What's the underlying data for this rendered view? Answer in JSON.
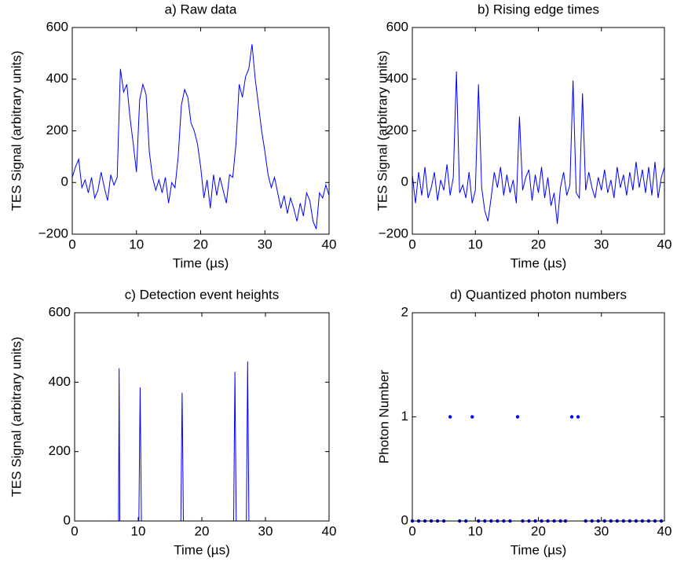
{
  "chart_data": [
    {
      "type": "line",
      "title": "a) Raw data",
      "xlabel": "Time (µs)",
      "ylabel": "TES Signal (arbitrary units)",
      "color": "#0000ff",
      "x": [
        0,
        0.5,
        1,
        1.5,
        2,
        2.5,
        3,
        3.5,
        4,
        4.5,
        5,
        5.5,
        6,
        6.5,
        7,
        7.5,
        8,
        8.5,
        9,
        9.5,
        10,
        10.5,
        11,
        11.5,
        12,
        12.5,
        13,
        13.5,
        14,
        14.5,
        15,
        15.5,
        16,
        16.5,
        17,
        17.5,
        18,
        18.5,
        19,
        19.5,
        20,
        20.5,
        21,
        21.5,
        22,
        22.5,
        23,
        23.5,
        24,
        24.5,
        25,
        25.5,
        26,
        26.5,
        27,
        27.5,
        28,
        28.5,
        29,
        29.5,
        30,
        30.5,
        31,
        31.5,
        32,
        32.5,
        33,
        33.5,
        34,
        34.5,
        35,
        35.5,
        36,
        36.5,
        37,
        37.5,
        38,
        38.5,
        39,
        39.5,
        40
      ],
      "values": [
        20,
        60,
        90,
        -20,
        10,
        -40,
        20,
        -60,
        -30,
        40,
        -20,
        -70,
        30,
        -10,
        20,
        440,
        350,
        380,
        250,
        150,
        40,
        320,
        380,
        340,
        120,
        20,
        -30,
        10,
        -40,
        20,
        -80,
        0,
        -20,
        100,
        300,
        360,
        330,
        230,
        200,
        150,
        60,
        -60,
        10,
        -100,
        30,
        -50,
        20,
        -30,
        -80,
        30,
        20,
        150,
        380,
        330,
        410,
        440,
        535,
        400,
        300,
        200,
        120,
        30,
        -20,
        20,
        -40,
        -100,
        -50,
        -120,
        -60,
        -100,
        -150,
        -80,
        -130,
        -40,
        -70,
        -150,
        -180,
        -40,
        -60,
        -10,
        -50
      ],
      "xlim": [
        0,
        40
      ],
      "xticks": [
        0,
        10,
        20,
        30,
        40
      ],
      "ylim": [
        -200,
        600
      ],
      "yticks": [
        {
          "value": -200,
          "label": "−200"
        },
        0,
        200,
        400,
        600
      ]
    },
    {
      "type": "line",
      "title": "b) Rising edge times",
      "xlabel": "Time (µs)",
      "ylabel": "TES Signal (arbitrary units)",
      "color": "#0000ff",
      "x": [
        0,
        0.5,
        1,
        1.5,
        2,
        2.5,
        3,
        3.5,
        4,
        4.5,
        5,
        5.5,
        6,
        6.5,
        7,
        7.5,
        8,
        8.5,
        9,
        9.5,
        10,
        10.5,
        11,
        11.5,
        12,
        12.5,
        13,
        13.5,
        14,
        14.5,
        15,
        15.5,
        16,
        16.5,
        17,
        17.5,
        18,
        18.5,
        19,
        19.5,
        20,
        20.5,
        21,
        21.5,
        22,
        22.5,
        23,
        23.5,
        24,
        24.5,
        25,
        25.5,
        26,
        26.5,
        27,
        27.5,
        28,
        28.5,
        29,
        29.5,
        30,
        30.5,
        31,
        31.5,
        32,
        32.5,
        33,
        33.5,
        34,
        34.5,
        35,
        35.5,
        36,
        36.5,
        37,
        37.5,
        38,
        38.5,
        39,
        39.5,
        40
      ],
      "values": [
        30,
        -80,
        40,
        -50,
        60,
        -60,
        -20,
        40,
        -70,
        10,
        -30,
        70,
        -50,
        20,
        430,
        -40,
        -10,
        -60,
        40,
        -80,
        -30,
        380,
        -20,
        -110,
        -150,
        -60,
        40,
        -20,
        60,
        -50,
        30,
        -40,
        10,
        -80,
        255,
        -30,
        20,
        50,
        -70,
        30,
        -40,
        60,
        -60,
        20,
        -90,
        -40,
        -160,
        -20,
        40,
        -50,
        -10,
        395,
        -40,
        -60,
        345,
        -30,
        40,
        -20,
        -60,
        20,
        -30,
        50,
        -40,
        10,
        -60,
        60,
        -20,
        30,
        -50,
        40,
        -30,
        80,
        -20,
        50,
        -40,
        60,
        -50,
        80,
        -60,
        20,
        60
      ],
      "xlim": [
        0,
        40
      ],
      "xticks": [
        0,
        10,
        20,
        30,
        40
      ],
      "ylim": [
        -200,
        600
      ],
      "yticks": [
        {
          "value": -200,
          "label": "−200"
        },
        0,
        200,
        400,
        600
      ]
    },
    {
      "type": "line",
      "title": "c) Detection event heights",
      "xlabel": "Time (µs)",
      "ylabel": "TES Signal (arbitrary units)",
      "color": "#0000ff",
      "x": [
        0,
        6.9,
        7,
        7.1,
        10.1,
        10.3,
        10.5,
        16.7,
        16.9,
        17.1,
        25,
        25.2,
        25.4,
        27,
        27.2,
        27.4,
        40
      ],
      "values": [
        0,
        0,
        440,
        0,
        0,
        385,
        0,
        0,
        370,
        0,
        0,
        430,
        0,
        0,
        460,
        0,
        0
      ],
      "xlim": [
        0,
        40
      ],
      "xticks": [
        0,
        10,
        20,
        30,
        40
      ],
      "ylim": [
        0,
        600
      ],
      "yticks": [
        0,
        200,
        400,
        600
      ]
    },
    {
      "type": "scatter",
      "title": "d) Quantized photon numbers",
      "xlabel": "Time (µs)",
      "ylabel": "Photon Number",
      "color": "#0000ff",
      "x": [
        0,
        1,
        2,
        3,
        4,
        5,
        6,
        7.5,
        8.5,
        9.5,
        10.5,
        11.5,
        12.5,
        13.5,
        14.5,
        15.5,
        16.7,
        17.5,
        18.5,
        19.5,
        20.5,
        21.5,
        22.5,
        23.5,
        24.3,
        25.3,
        26.3,
        27.5,
        28.5,
        29.5,
        30.5,
        31.5,
        32.5,
        33.5,
        34.5,
        35.5,
        36.5,
        37.5,
        38.5,
        39.5
      ],
      "values": [
        0,
        0,
        0,
        0,
        0,
        0,
        1,
        0,
        0,
        1,
        0,
        0,
        0,
        0,
        0,
        0,
        1,
        0,
        0,
        0,
        0,
        0,
        0,
        0,
        0,
        1,
        1,
        0,
        0,
        0,
        0,
        0,
        0,
        0,
        0,
        0,
        0,
        0,
        0,
        0
      ],
      "xlim": [
        0,
        40
      ],
      "xticks": [
        0,
        10,
        20,
        30,
        40
      ],
      "ylim": [
        0,
        2
      ],
      "yticks": [
        0,
        1,
        2
      ]
    }
  ]
}
